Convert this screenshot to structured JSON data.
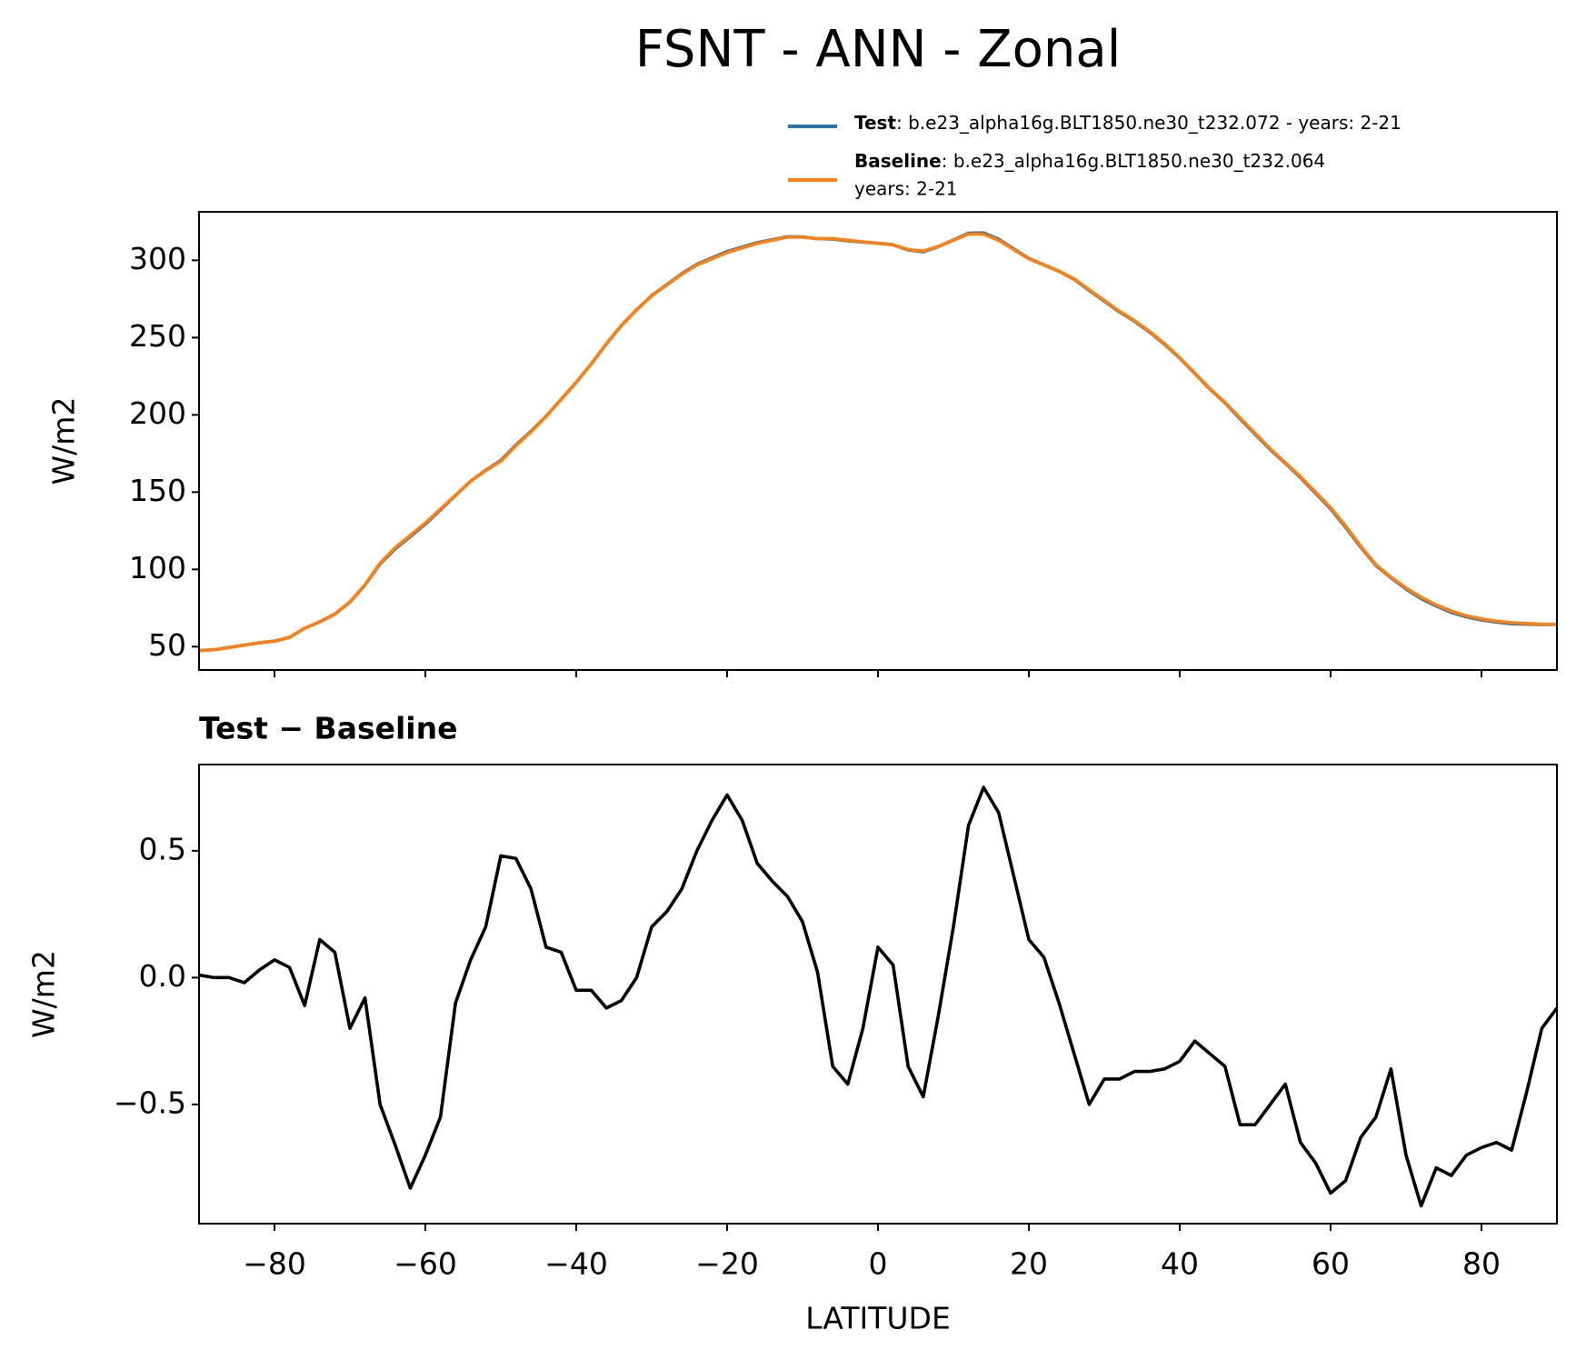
{
  "title": "FSNT - ANN - Zonal",
  "chart_data": [
    {
      "type": "line",
      "ylabel": "W/m2",
      "x": [
        -90,
        -88,
        -86,
        -84,
        -82,
        -80,
        -78,
        -76,
        -74,
        -72,
        -70,
        -68,
        -66,
        -64,
        -62,
        -60,
        -58,
        -56,
        -54,
        -52,
        -50,
        -48,
        -46,
        -44,
        -42,
        -40,
        -38,
        -36,
        -34,
        -32,
        -30,
        -28,
        -26,
        -24,
        -22,
        -20,
        -18,
        -16,
        -14,
        -12,
        -10,
        -8,
        -6,
        -4,
        -2,
        0,
        2,
        4,
        6,
        8,
        10,
        12,
        14,
        16,
        18,
        20,
        22,
        24,
        26,
        28,
        30,
        32,
        34,
        36,
        38,
        40,
        42,
        44,
        46,
        48,
        50,
        52,
        54,
        56,
        58,
        60,
        62,
        64,
        66,
        68,
        70,
        72,
        74,
        76,
        78,
        80,
        82,
        84,
        86,
        88,
        90
      ],
      "series": [
        {
          "name": "Test",
          "description": ": b.e23_alpha16g.BLT1850.ne30_t232.072 - years: 2-21",
          "color": "#1f77b4",
          "values": [
            47.5,
            48.0,
            49.5,
            51.0,
            52.5,
            53.6,
            56.0,
            61.9,
            66.1,
            71.1,
            78.8,
            89.9,
            103.5,
            113.3,
            121.2,
            129.3,
            138.5,
            147.9,
            157.1,
            164.2,
            170.5,
            180.5,
            189.4,
            199.1,
            210.1,
            221.0,
            233.0,
            245.9,
            257.9,
            268.0,
            277.2,
            284.3,
            291.4,
            297.5,
            301.6,
            305.7,
            308.6,
            311.5,
            313.4,
            315.3,
            315.2,
            314.0,
            313.7,
            312.6,
            311.8,
            311.1,
            310.1,
            306.7,
            305.5,
            308.9,
            313.2,
            317.6,
            317.8,
            313.7,
            307.4,
            301.2,
            297.1,
            292.9,
            287.7,
            280.5,
            273.6,
            266.6,
            260.6,
            253.6,
            245.6,
            236.7,
            226.8,
            216.7,
            207.7,
            197.4,
            187.4,
            177.5,
            168.6,
            159.4,
            149.3,
            139.2,
            127.2,
            114.4,
            102.5,
            94.6,
            87.3,
            81.1,
            76.3,
            72.2,
            69.3,
            67.3,
            65.9,
            64.8,
            64.6,
            64.3,
            64.4
          ]
        },
        {
          "name": "Baseline",
          "description": [
            ": b.e23_alpha16g.BLT1850.ne30_t232.064",
            "years: 2-21"
          ],
          "color": "#ff7f0e",
          "values": [
            47.5,
            48,
            49.5,
            51,
            52.5,
            53.5,
            56,
            62,
            66,
            71,
            79,
            90,
            104,
            114,
            122,
            130,
            139,
            148,
            157,
            164,
            170,
            180,
            189,
            199,
            210,
            221,
            233,
            246,
            258,
            268,
            277,
            284,
            291,
            297,
            301,
            305,
            308,
            311,
            313,
            315,
            315,
            314,
            314,
            313,
            312,
            311,
            310,
            307,
            306,
            309,
            313,
            317,
            317,
            313,
            307,
            301,
            297,
            293,
            288,
            281,
            274,
            267,
            261,
            254,
            246,
            237,
            227,
            217,
            208,
            198,
            188,
            178,
            169,
            160,
            150,
            140,
            128,
            115,
            103,
            95,
            88,
            82,
            77,
            73,
            70,
            68,
            66.5,
            65.5,
            65,
            64.5,
            64.5
          ]
        }
      ],
      "xlim": [
        -90,
        90
      ],
      "xticks": [
        -80,
        -60,
        -40,
        -20,
        0,
        20,
        40,
        60,
        80
      ],
      "ylim": [
        34.9,
        331.4
      ],
      "yticks": [
        50,
        100,
        150,
        200,
        250,
        300
      ]
    },
    {
      "type": "line",
      "title": "Test − Baseline",
      "ylabel": "W/m2",
      "xlabel": "LATITUDE",
      "x": [
        -90,
        -88,
        -86,
        -84,
        -82,
        -80,
        -78,
        -76,
        -74,
        -72,
        -70,
        -68,
        -66,
        -64,
        -62,
        -60,
        -58,
        -56,
        -54,
        -52,
        -50,
        -48,
        -46,
        -44,
        -42,
        -40,
        -38,
        -36,
        -34,
        -32,
        -30,
        -28,
        -26,
        -24,
        -22,
        -20,
        -18,
        -16,
        -14,
        -12,
        -10,
        -8,
        -6,
        -4,
        -2,
        0,
        2,
        4,
        6,
        8,
        10,
        12,
        14,
        16,
        18,
        20,
        22,
        24,
        26,
        28,
        30,
        32,
        34,
        36,
        38,
        40,
        42,
        44,
        46,
        48,
        50,
        52,
        54,
        56,
        58,
        60,
        62,
        64,
        66,
        68,
        70,
        72,
        74,
        76,
        78,
        80,
        82,
        84,
        86,
        88,
        90
      ],
      "series": [
        {
          "color": "#000000",
          "values": [
            0.01,
            0.0,
            0.0,
            -0.02,
            0.03,
            0.07,
            0.04,
            -0.11,
            0.15,
            0.1,
            -0.2,
            -0.08,
            -0.5,
            -0.66,
            -0.83,
            -0.7,
            -0.55,
            -0.1,
            0.07,
            0.2,
            0.48,
            0.47,
            0.35,
            0.12,
            0.1,
            -0.05,
            -0.05,
            -0.12,
            -0.09,
            0.0,
            0.2,
            0.26,
            0.35,
            0.5,
            0.62,
            0.72,
            0.62,
            0.45,
            0.38,
            0.32,
            0.22,
            0.02,
            -0.35,
            -0.42,
            -0.2,
            0.12,
            0.05,
            -0.35,
            -0.47,
            -0.15,
            0.2,
            0.6,
            0.75,
            0.65,
            0.4,
            0.15,
            0.08,
            -0.1,
            -0.3,
            -0.5,
            -0.4,
            -0.4,
            -0.37,
            -0.37,
            -0.36,
            -0.33,
            -0.25,
            -0.3,
            -0.35,
            -0.58,
            -0.58,
            -0.5,
            -0.42,
            -0.65,
            -0.73,
            -0.85,
            -0.8,
            -0.63,
            -0.55,
            -0.36,
            -0.7,
            -0.9,
            -0.75,
            -0.78,
            -0.7,
            -0.67,
            -0.65,
            -0.68,
            -0.45,
            -0.2,
            -0.12
          ]
        }
      ],
      "xlim": [
        -90,
        90
      ],
      "xticks": [
        {
          "value": -80,
          "label": "−80"
        },
        {
          "value": -60,
          "label": "−60"
        },
        {
          "value": -40,
          "label": "−40"
        },
        {
          "value": -20,
          "label": "−20"
        },
        0,
        20,
        40,
        60,
        80
      ],
      "ylim": [
        -0.97,
        0.84
      ],
      "yticks": [
        {
          "value": -0.5,
          "label": "−0.5"
        },
        {
          "value": 0,
          "label": "0.0"
        },
        {
          "value": 0.5,
          "label": "0.5"
        }
      ]
    }
  ]
}
